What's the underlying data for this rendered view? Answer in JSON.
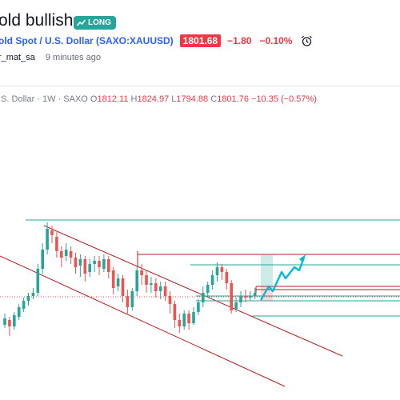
{
  "idea": {
    "title": "old bullish",
    "badge": "LONG",
    "symbol": "old Spot / U.S. Dollar (SAXO:XAUUSD)",
    "price": "1801.68",
    "change": "−1.80",
    "change_pct": "−0.10%",
    "author": "r_mat_sa",
    "published": "9 minutes ago"
  },
  "legend": {
    "series": ".S. Dollar · 1W · SAXO",
    "o_label": "O",
    "o_value": "1812.11",
    "h_label": "H",
    "h_value": "1824.97",
    "l_label": "L",
    "l_value": "1794.88",
    "c_label": "C",
    "c_value": "1801.76",
    "change": "−10.35 (−0.57%)"
  },
  "colors": {
    "up": "#26a69a",
    "down": "#ef5350",
    "channel": "#b71c1c",
    "support": "#26a69a",
    "resistance": "#b71c1c",
    "projection": "#00bcd4"
  },
  "icons": {
    "badge": "trend-up-icon",
    "alert": "alarm-clock-icon"
  }
}
